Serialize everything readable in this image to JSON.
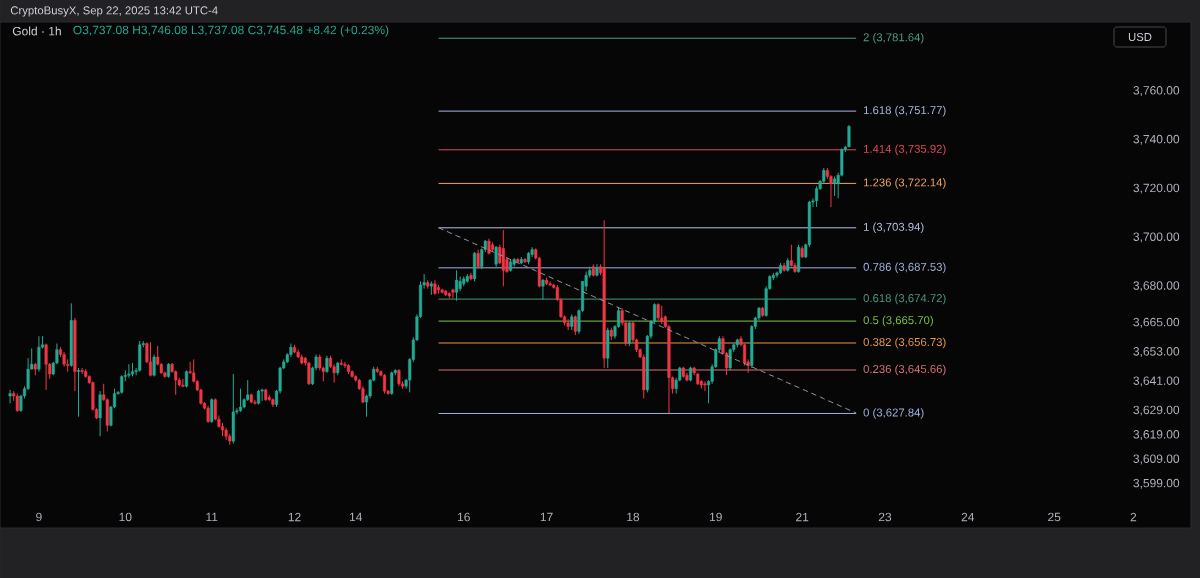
{
  "chart_data": {
    "type": "candlestick",
    "title": "Gold · 1h",
    "subtitle": "O3,737.08 H3,746.08 L3,737.08 C3,745.48 +8.42 (+0.23%)",
    "annotations": [
      "CryptoBusyX, Sep 22, 2025 13:42 UTC-4",
      "USD"
    ],
    "categories": [
      null,
      null,
      null,
      null,
      null,
      null,
      null,
      null,
      "9",
      null,
      null,
      null,
      null,
      null,
      null,
      null,
      null,
      null,
      null,
      null,
      null,
      null,
      null,
      null,
      null,
      null,
      null,
      null,
      null,
      null,
      null,
      null,
      "10",
      null,
      null,
      null,
      null,
      null,
      null,
      null,
      null,
      null,
      null,
      null,
      null,
      null,
      null,
      null,
      null,
      null,
      null,
      null,
      null,
      null,
      null,
      null,
      "11",
      null,
      null,
      null,
      null,
      null,
      null,
      null,
      null,
      null,
      null,
      null,
      null,
      null,
      null,
      null,
      null,
      null,
      null,
      null,
      null,
      null,
      null,
      "12",
      null,
      null,
      null,
      null,
      null,
      null,
      null,
      null,
      null,
      null,
      null,
      null,
      null,
      null,
      null,
      null,
      "14",
      null,
      null,
      null,
      null,
      null,
      null,
      null,
      null,
      null,
      null,
      null,
      null,
      null,
      null,
      null,
      null,
      null,
      null,
      null,
      null,
      null,
      null,
      null,
      null,
      null,
      null,
      null,
      null,
      null,
      "16",
      null,
      null,
      null,
      null,
      null,
      null,
      null,
      null,
      null,
      null,
      null,
      null,
      null,
      null,
      null,
      null,
      null,
      null,
      null,
      null,
      null,
      null,
      "17",
      null,
      null,
      null,
      null,
      null,
      null,
      null,
      null,
      null,
      null,
      null,
      null,
      null,
      null,
      null,
      null,
      null,
      null,
      null,
      null,
      null,
      null,
      null,
      "18",
      null,
      null,
      null,
      null,
      null,
      null,
      null,
      null,
      null,
      null,
      null,
      null,
      null,
      null,
      null,
      null,
      null,
      null,
      null,
      null,
      null,
      null,
      "19",
      null,
      null,
      null,
      null,
      null,
      null,
      null,
      null,
      null,
      null,
      null,
      null,
      null,
      null,
      null,
      null,
      null,
      null,
      null,
      null,
      null,
      null,
      null,
      "21",
      null,
      null,
      null,
      null,
      null,
      null,
      null,
      null,
      null,
      null,
      null,
      null,
      null,
      null,
      null,
      null,
      null,
      null,
      null,
      null,
      null,
      null,
      "23",
      null,
      null,
      null,
      null,
      null,
      null,
      null,
      null,
      null,
      null,
      null,
      null,
      null,
      null,
      null,
      null,
      null,
      null,
      null,
      null,
      null,
      null,
      "24",
      null,
      null,
      null,
      null,
      null,
      null,
      null,
      null,
      null,
      null,
      null,
      null,
      null,
      null,
      null,
      null,
      null,
      null,
      null,
      null,
      null,
      null,
      null,
      "25",
      null,
      null,
      null,
      null,
      null,
      null,
      null,
      null,
      null,
      null,
      null,
      null,
      null,
      null,
      null,
      null,
      null,
      null,
      null,
      null,
      null,
      "2"
    ],
    "ohlc": [
      [
        3635,
        3637.5,
        3632,
        3636
      ],
      [
        3636,
        3637,
        3633,
        3635
      ],
      [
        3635,
        3636,
        3628.5,
        3629
      ],
      [
        3629,
        3635.5,
        3628.5,
        3635
      ],
      [
        3635,
        3639,
        3634,
        3638
      ],
      [
        3638,
        3650.5,
        3637.5,
        3646
      ],
      [
        3646,
        3654.5,
        3646,
        3648
      ],
      [
        3648,
        3648.5,
        3643.5,
        3646
      ],
      [
        3646,
        3659.5,
        3645,
        3655
      ],
      [
        3655,
        3659.5,
        3654.5,
        3656
      ],
      [
        3656,
        3656.5,
        3637.5,
        3648
      ],
      [
        3648,
        3648.5,
        3642,
        3644
      ],
      [
        3644,
        3649,
        3643.5,
        3648.5
      ],
      [
        3648.5,
        3656.5,
        3648,
        3654
      ],
      [
        3654,
        3655,
        3651,
        3652
      ],
      [
        3652,
        3653,
        3647,
        3648
      ],
      [
        3648,
        3650,
        3645,
        3647.5
      ],
      [
        3647.5,
        3673,
        3647,
        3666
      ],
      [
        3666,
        3667,
        3637,
        3645
      ],
      [
        3645,
        3646.5,
        3626.5,
        3645.5
      ],
      [
        3645.5,
        3646.5,
        3644,
        3645
      ],
      [
        3645,
        3646,
        3642.5,
        3643
      ],
      [
        3643,
        3643.5,
        3640,
        3640.5
      ],
      [
        3640.5,
        3641,
        3629,
        3629.5
      ],
      [
        3629.5,
        3630,
        3625.5,
        3626
      ],
      [
        3626,
        3637,
        3618.5,
        3635.5
      ],
      [
        3635.5,
        3640,
        3633,
        3633.5
      ],
      [
        3633.5,
        3634,
        3620.5,
        3623
      ],
      [
        3623,
        3631,
        3622.5,
        3630.5
      ],
      [
        3630.5,
        3638,
        3630,
        3636
      ],
      [
        3636,
        3637,
        3635.5,
        3636.5
      ],
      [
        3636.5,
        3643.5,
        3636,
        3643
      ],
      [
        3643,
        3645.5,
        3641,
        3643.5
      ],
      [
        3643.5,
        3648,
        3642.5,
        3644
      ],
      [
        3644,
        3648.5,
        3643,
        3645
      ],
      [
        3645,
        3646.5,
        3643.5,
        3645.5
      ],
      [
        3645.5,
        3657.5,
        3645,
        3656
      ],
      [
        3656,
        3657.5,
        3655,
        3656.5
      ],
      [
        3656.5,
        3657,
        3648.5,
        3649
      ],
      [
        3649,
        3657,
        3643,
        3643.5
      ],
      [
        3643.5,
        3652,
        3643,
        3651
      ],
      [
        3651,
        3655.5,
        3647.5,
        3648
      ],
      [
        3648,
        3648.5,
        3644,
        3644.5
      ],
      [
        3644.5,
        3645,
        3642.5,
        3643
      ],
      [
        3643,
        3648.5,
        3642.5,
        3648
      ],
      [
        3648,
        3648.5,
        3644.5,
        3645
      ],
      [
        3645,
        3645.5,
        3635.5,
        3641.5
      ],
      [
        3641.5,
        3642.5,
        3639,
        3639.5
      ],
      [
        3639.5,
        3642,
        3638.5,
        3639
      ],
      [
        3639,
        3645.5,
        3638.5,
        3645
      ],
      [
        3645,
        3649,
        3644,
        3644.5
      ],
      [
        3644.5,
        3650,
        3640.5,
        3641
      ],
      [
        3641,
        3641.5,
        3637,
        3637.5
      ],
      [
        3637.5,
        3638,
        3631.5,
        3632
      ],
      [
        3632,
        3632.5,
        3629.5,
        3630
      ],
      [
        3630,
        3631,
        3624,
        3624.5
      ],
      [
        3624.5,
        3634,
        3624,
        3633.5
      ],
      [
        3633.5,
        3634,
        3625,
        3625.5
      ],
      [
        3625.5,
        3627,
        3622,
        3622.5
      ],
      [
        3622.5,
        3624,
        3618.5,
        3621
      ],
      [
        3621,
        3622,
        3617,
        3618.5
      ],
      [
        3618.5,
        3619.5,
        3615,
        3616.5
      ],
      [
        3616.5,
        3644,
        3615.5,
        3628.5
      ],
      [
        3628.5,
        3630,
        3627.5,
        3629
      ],
      [
        3629,
        3638,
        3628.5,
        3630.5
      ],
      [
        3630.5,
        3634,
        3630,
        3633.5
      ],
      [
        3633.5,
        3641.5,
        3633,
        3635.5
      ],
      [
        3635.5,
        3636,
        3632,
        3632.5
      ],
      [
        3632.5,
        3633.5,
        3631.5,
        3632
      ],
      [
        3632,
        3637.5,
        3631.5,
        3637
      ],
      [
        3637,
        3638,
        3633,
        3637.5
      ],
      [
        3637.5,
        3638,
        3633,
        3633.5
      ],
      [
        3634.5,
        3635.5,
        3633,
        3633.5
      ],
      [
        3633.5,
        3634,
        3630.5,
        3631.5
      ],
      [
        3631.5,
        3637.5,
        3630.5,
        3637
      ],
      [
        3637,
        3647,
        3636,
        3646.5
      ],
      [
        3646.5,
        3650,
        3646,
        3649
      ],
      [
        3649,
        3652.5,
        3648.5,
        3652
      ],
      [
        3652,
        3656.5,
        3651,
        3655
      ],
      [
        3655,
        3656,
        3652.5,
        3653
      ],
      [
        3653,
        3654,
        3650.5,
        3651
      ],
      [
        3651,
        3652,
        3648,
        3648.5
      ],
      [
        3650.5,
        3651,
        3647.5,
        3648.5
      ],
      [
        3648.5,
        3649,
        3639.5,
        3640
      ],
      [
        3640,
        3647,
        3639.5,
        3646.5
      ],
      [
        3646.5,
        3652,
        3645.5,
        3651
      ],
      [
        3651,
        3652,
        3645.5,
        3646.5
      ],
      [
        3646.5,
        3647,
        3641,
        3645
      ],
      [
        3645,
        3651.5,
        3644.5,
        3650.5
      ],
      [
        3650.5,
        3651.5,
        3646.5,
        3647
      ],
      [
        3647,
        3648,
        3640.5,
        3644.5
      ],
      [
        3644.5,
        3649,
        3643.5,
        3648.5
      ],
      [
        3648.5,
        3650,
        3647.5,
        3648
      ],
      [
        3648,
        3649,
        3646.5,
        3647.5
      ],
      [
        3647.5,
        3648,
        3644,
        3645
      ],
      [
        3645,
        3645.5,
        3642.5,
        3643
      ],
      [
        3643,
        3643.5,
        3641,
        3641.5
      ],
      [
        3641.5,
        3642,
        3637.5,
        3638
      ],
      [
        3638,
        3639,
        3632,
        3632.5
      ],
      [
        3632.5,
        3635.5,
        3626.5,
        3635
      ],
      [
        3635,
        3642,
        3634,
        3641.5
      ],
      [
        3641.5,
        3647,
        3641,
        3646
      ],
      [
        3646,
        3647,
        3644.5,
        3645
      ],
      [
        3645,
        3645.5,
        3643,
        3643.5
      ],
      [
        3643.5,
        3644,
        3636,
        3637
      ],
      [
        3637,
        3637.5,
        3635.5,
        3636
      ],
      [
        3636,
        3645,
        3635.5,
        3644.5
      ],
      [
        3644.5,
        3646,
        3643.5,
        3645.5
      ],
      [
        3645.5,
        3646,
        3639,
        3640
      ],
      [
        3640,
        3641,
        3638,
        3639
      ],
      [
        3639,
        3642,
        3638,
        3641.5
      ],
      [
        3641.5,
        3650.5,
        3636.5,
        3650
      ],
      [
        3650,
        3659,
        3649,
        3658
      ],
      [
        3658,
        3668.5,
        3657.5,
        3667.5
      ],
      [
        3667.5,
        3682,
        3667,
        3680.5
      ],
      [
        3680.5,
        3685,
        3679,
        3681.5
      ],
      [
        3681.5,
        3682.5,
        3679,
        3680
      ],
      [
        3680,
        3682,
        3676.5,
        3681
      ],
      [
        3681,
        3682.5,
        3676.5,
        3677
      ],
      [
        3679.5,
        3680.5,
        3677,
        3678.5
      ],
      [
        3678.5,
        3679,
        3677,
        3677.5
      ],
      [
        3678,
        3678.5,
        3676,
        3676.5
      ],
      [
        3677,
        3677.5,
        3675,
        3676
      ],
      [
        3678.5,
        3679,
        3675,
        3677.5
      ],
      [
        3677.5,
        3686.5,
        3674,
        3682.5
      ],
      [
        3679,
        3684,
        3678,
        3682
      ],
      [
        3681,
        3684,
        3680,
        3683
      ],
      [
        3682,
        3685,
        3681.5,
        3684
      ],
      [
        3684.5,
        3685.5,
        3682.5,
        3683
      ],
      [
        3683,
        3694,
        3682,
        3693.5
      ],
      [
        3693.5,
        3695,
        3687,
        3688
      ],
      [
        3688,
        3695.5,
        3687,
        3695
      ],
      [
        3695,
        3699,
        3694,
        3698.5
      ],
      [
        3698.5,
        3699.5,
        3693,
        3693.5
      ],
      [
        3697,
        3698,
        3694,
        3695
      ],
      [
        3689,
        3696.5,
        3688,
        3696
      ],
      [
        3696,
        3697,
        3689,
        3689.5
      ],
      [
        3695.5,
        3703,
        3680,
        3686.5
      ],
      [
        3691,
        3692,
        3685.5,
        3686
      ],
      [
        3686.5,
        3691,
        3686,
        3690
      ],
      [
        3689,
        3691.5,
        3688,
        3691
      ],
      [
        3691,
        3691.5,
        3689.5,
        3690
      ],
      [
        3689.5,
        3692,
        3689,
        3691
      ],
      [
        3691,
        3691.5,
        3689.5,
        3690
      ],
      [
        3690,
        3694,
        3689,
        3693.5
      ],
      [
        3693,
        3696,
        3692,
        3695
      ],
      [
        3695,
        3695.5,
        3691,
        3691.5
      ],
      [
        3691.5,
        3692,
        3679.5,
        3680
      ],
      [
        3680,
        3683,
        3674.5,
        3682.5
      ],
      [
        3682.5,
        3683.5,
        3680.5,
        3681
      ],
      [
        3681,
        3682,
        3680,
        3680.5
      ],
      [
        3680.5,
        3681,
        3679,
        3679.5
      ],
      [
        3679.5,
        3680.5,
        3674,
        3674.5
      ],
      [
        3674.5,
        3675,
        3667,
        3667.5
      ],
      [
        3667.5,
        3668,
        3664,
        3665
      ],
      [
        3665,
        3666.5,
        3662,
        3663.5
      ],
      [
        3663.5,
        3668.5,
        3662,
        3667.5
      ],
      [
        3667.5,
        3668,
        3660,
        3661.5
      ],
      [
        3661.5,
        3670.5,
        3660.5,
        3670
      ],
      [
        3670,
        3682,
        3669.5,
        3682
      ],
      [
        3680,
        3686,
        3678,
        3684.5
      ],
      [
        3684.5,
        3688,
        3683.5,
        3686.5
      ],
      [
        3688,
        3689,
        3684,
        3684.5
      ],
      [
        3684.5,
        3689,
        3684,
        3687.5
      ],
      [
        3688,
        3689,
        3684.5,
        3685.5
      ],
      [
        3687.5,
        3707,
        3646.5,
        3650.5
      ],
      [
        3650.5,
        3663,
        3646.5,
        3662
      ],
      [
        3662,
        3663,
        3658,
        3659.5
      ],
      [
        3659.5,
        3664,
        3658.5,
        3663.5
      ],
      [
        3663.5,
        3671.5,
        3663,
        3670
      ],
      [
        3670,
        3671,
        3664,
        3665
      ],
      [
        3665,
        3666,
        3655.5,
        3656.5
      ],
      [
        3656.5,
        3665.5,
        3655.5,
        3665
      ],
      [
        3665,
        3665.5,
        3657,
        3658
      ],
      [
        3658,
        3658.5,
        3653,
        3654
      ],
      [
        3654,
        3654.5,
        3650.5,
        3651
      ],
      [
        3651,
        3652,
        3634,
        3637.5
      ],
      [
        3637.5,
        3660,
        3636.5,
        3659.5
      ],
      [
        3659.5,
        3666,
        3658.5,
        3665.5
      ],
      [
        3665.5,
        3673,
        3665,
        3672.5
      ],
      [
        3672.5,
        3673,
        3666,
        3667
      ],
      [
        3667,
        3672,
        3664.5,
        3665.5
      ],
      [
        3667.5,
        3668,
        3663,
        3663.5
      ],
      [
        3663.5,
        3664,
        3628,
        3642.5
      ],
      [
        3642.5,
        3643,
        3636,
        3638
      ],
      [
        3638,
        3642.5,
        3636,
        3641.5
      ],
      [
        3641.5,
        3647,
        3641,
        3646.5
      ],
      [
        3646.5,
        3647,
        3642.5,
        3643
      ],
      [
        3643.5,
        3644.5,
        3641,
        3641.5
      ],
      [
        3641.5,
        3647,
        3641,
        3646.5
      ],
      [
        3646.5,
        3647,
        3643.5,
        3644.5
      ],
      [
        3644,
        3644.5,
        3639.5,
        3640
      ],
      [
        3641,
        3641.5,
        3638,
        3639.5
      ],
      [
        3640,
        3641,
        3637,
        3639.5
      ],
      [
        3639.5,
        3641.5,
        3632,
        3641
      ],
      [
        3641,
        3648,
        3640,
        3647
      ],
      [
        3647,
        3654.5,
        3646.5,
        3654
      ],
      [
        3654,
        3659.5,
        3653,
        3658.5
      ],
      [
        3658.5,
        3659.5,
        3652,
        3652.5
      ],
      [
        3652.5,
        3653,
        3643.5,
        3646.5
      ],
      [
        3646.5,
        3654.5,
        3645.5,
        3654
      ],
      [
        3654,
        3656.5,
        3653,
        3656
      ],
      [
        3656,
        3658.5,
        3655,
        3658
      ],
      [
        3658.5,
        3659.5,
        3655.5,
        3656
      ],
      [
        3656,
        3656.5,
        3647.5,
        3648.5
      ],
      [
        3649,
        3650,
        3644.5,
        3647.5
      ],
      [
        3647.5,
        3664,
        3646.5,
        3663.5
      ],
      [
        3663.5,
        3667.5,
        3662.5,
        3667
      ],
      [
        3667,
        3671.5,
        3666,
        3671
      ],
      [
        3671,
        3671.5,
        3667.5,
        3668
      ],
      [
        3668,
        3680,
        3667.5,
        3679
      ],
      [
        3679,
        3684.5,
        3678.5,
        3684
      ],
      [
        3683.5,
        3685.5,
        3682.5,
        3684.5
      ],
      [
        3684.5,
        3686,
        3683.5,
        3685.5
      ],
      [
        3685.5,
        3689.5,
        3685,
        3688.5
      ],
      [
        3688.5,
        3689.5,
        3686,
        3686.5
      ],
      [
        3686.5,
        3691.5,
        3686,
        3690.5
      ],
      [
        3690.5,
        3697,
        3688,
        3688.5
      ],
      [
        3688.5,
        3689.5,
        3685.5,
        3686
      ],
      [
        3686,
        3697,
        3685.5,
        3696
      ],
      [
        3695.5,
        3696.5,
        3691.5,
        3692
      ],
      [
        3692,
        3697.5,
        3691.5,
        3697
      ],
      [
        3697,
        3715,
        3696,
        3714.5
      ],
      [
        3714.5,
        3716,
        3712.5,
        3715
      ],
      [
        3715,
        3721,
        3712.5,
        3720
      ],
      [
        3720,
        3723.5,
        3719.5,
        3723
      ],
      [
        3723,
        3728.5,
        3722,
        3727.5
      ],
      [
        3727.5,
        3728.5,
        3724,
        3725
      ],
      [
        3725,
        3725.5,
        3712.5,
        3722
      ],
      [
        3722,
        3725,
        3717,
        3724
      ],
      [
        3722,
        3726.5,
        3716,
        3725.5
      ],
      [
        3725.5,
        3736.5,
        3725,
        3736
      ],
      [
        3736,
        3737.5,
        3735,
        3737
      ],
      [
        3737.08,
        3746.08,
        3737.08,
        3745.48
      ],
      null,
      null,
      null,
      null,
      null,
      null,
      null,
      null,
      null,
      null,
      null,
      null,
      null,
      null,
      null,
      null,
      null,
      null,
      null,
      null,
      null,
      null,
      null,
      null,
      null,
      null,
      null,
      null,
      null,
      null,
      null,
      null,
      null,
      null,
      null,
      null,
      null,
      null,
      null,
      null,
      null,
      null,
      null,
      null,
      null,
      null,
      null,
      null,
      null,
      null,
      null,
      null,
      null,
      null,
      null,
      null,
      null,
      null,
      null,
      null,
      null,
      null,
      null,
      null,
      null,
      null,
      null,
      null,
      null,
      null,
      null,
      null,
      null,
      null,
      null,
      null,
      null,
      null,
      null
    ],
    "colors": [
      "#22ab94",
      "#f23645",
      "#f23645",
      "#22ab94",
      "#22ab94",
      "#22ab94",
      "#22ab94",
      "#f23645",
      "#22ab94",
      "#22ab94",
      "#f23645",
      "#f23645",
      "#22ab94",
      "#22ab94",
      "#f23645",
      "#f23645",
      "#f23645",
      "#22ab94",
      "#f23645",
      "#22ab94",
      "#f23645",
      "#f23645",
      "#f23645",
      "#f23645",
      "#f23645",
      "#22ab94",
      "#f23645",
      "#f23645",
      "#22ab94",
      "#22ab94",
      "#22ab94",
      "#22ab94",
      "#22ab94",
      "#22ab94",
      "#22ab94",
      "#22ab94",
      "#22ab94",
      "#22ab94",
      "#f23645",
      "#f23645",
      "#22ab94",
      "#f23645",
      "#f23645",
      "#f23645",
      "#22ab94",
      "#f23645",
      "#f23645",
      "#f23645",
      "#f23645",
      "#22ab94",
      "#f23645",
      "#f23645",
      "#f23645",
      "#f23645",
      "#f23645",
      "#f23645",
      "#22ab94",
      "#f23645",
      "#f23645",
      "#f23645",
      "#f23645",
      "#f23645",
      "#22ab94",
      "#22ab94",
      "#22ab94",
      "#22ab94",
      "#22ab94",
      "#f23645",
      "#f23645",
      "#22ab94",
      "#22ab94",
      "#f23645",
      "#f23645",
      "#f23645",
      "#22ab94",
      "#22ab94",
      "#22ab94",
      "#22ab94",
      "#22ab94",
      "#f23645",
      "#f23645",
      "#f23645",
      "#f23645",
      "#f23645",
      "#22ab94",
      "#22ab94",
      "#f23645",
      "#f23645",
      "#22ab94",
      "#f23645",
      "#f23645",
      "#22ab94",
      "#f23645",
      "#f23645",
      "#f23645",
      "#f23645",
      "#f23645",
      "#f23645",
      "#f23645",
      "#22ab94",
      "#22ab94",
      "#22ab94",
      "#f23645",
      "#f23645",
      "#f23645",
      "#f23645",
      "#22ab94",
      "#22ab94",
      "#f23645",
      "#f23645",
      "#22ab94",
      "#22ab94",
      "#22ab94",
      "#22ab94",
      "#22ab94",
      "#22ab94",
      "#f23645",
      "#22ab94",
      "#f23645",
      "#f23645",
      "#f23645",
      "#f23645",
      "#f23645",
      "#f23645",
      "#22ab94",
      "#22ab94",
      "#22ab94",
      "#22ab94",
      "#f23645",
      "#22ab94",
      "#f23645",
      "#22ab94",
      "#22ab94",
      "#f23645",
      "#f23645",
      "#22ab94",
      "#f23645",
      "#f23645",
      "#f23645",
      "#22ab94",
      "#22ab94",
      "#f23645",
      "#22ab94",
      "#f23645",
      "#22ab94",
      "#22ab94",
      "#f23645",
      "#f23645",
      "#22ab94",
      "#f23645",
      "#f23645",
      "#f23645",
      "#f23645",
      "#f23645",
      "#f23645",
      "#f23645",
      "#22ab94",
      "#f23645",
      "#22ab94",
      "#22ab94",
      "#22ab94",
      "#22ab94",
      "#f23645",
      "#22ab94",
      "#f23645",
      "#f23645",
      "#22ab94",
      "#f23645",
      "#22ab94",
      "#22ab94",
      "#f23645",
      "#f23645",
      "#22ab94",
      "#f23645",
      "#f23645",
      "#f23645",
      "#f23645",
      "#22ab94",
      "#22ab94",
      "#22ab94",
      "#f23645",
      "#f23645",
      "#f23645",
      "#f23645",
      "#f23645",
      "#22ab94",
      "#22ab94",
      "#f23645",
      "#f23645",
      "#22ab94",
      "#f23645",
      "#f23645",
      "#f23645",
      "#f23645",
      "#22ab94",
      "#22ab94",
      "#22ab94",
      "#22ab94",
      "#f23645",
      "#f23645",
      "#22ab94",
      "#22ab94",
      "#22ab94",
      "#f23645",
      "#f23645",
      "#f23645",
      "#22ab94",
      "#22ab94",
      "#22ab94",
      "#f23645",
      "#22ab94",
      "#22ab94",
      "#22ab94",
      "#22ab94",
      "#22ab94",
      "#f23645",
      "#22ab94",
      "#f23645",
      "#f23645",
      "#22ab94",
      "#f23645",
      "#22ab94",
      "#22ab94",
      "#22ab94",
      "#22ab94",
      "#22ab94",
      "#22ab94",
      "#f23645",
      "#f23645",
      "#22ab94",
      "#22ab94",
      "#22ab94",
      "#22ab94",
      "#22ab94",
      null,
      null,
      null,
      null,
      null,
      null,
      null,
      null,
      null,
      null,
      null,
      null,
      null,
      null,
      null,
      null,
      null,
      null,
      null,
      null,
      null,
      null,
      null,
      null,
      null,
      null,
      null,
      null,
      null,
      null,
      null,
      null,
      null,
      null,
      null,
      null,
      null,
      null,
      null,
      null,
      null,
      null,
      null,
      null,
      null,
      null,
      null,
      null,
      null,
      null,
      null,
      null,
      null,
      null,
      null,
      null,
      null,
      null,
      null,
      null,
      null,
      null,
      null,
      null,
      null,
      null,
      null,
      null,
      null,
      null,
      null,
      null,
      null,
      null,
      null,
      null,
      null,
      null,
      null
    ],
    "series": [
      {
        "type": "line",
        "color": "#9598a1",
        "line_style": "dashed",
        "values": [
          null,
          null,
          null,
          null,
          null,
          null,
          null,
          null,
          null,
          null,
          null,
          null,
          null,
          null,
          null,
          null,
          null,
          null,
          null,
          null,
          null,
          null,
          null,
          null,
          null,
          null,
          null,
          null,
          null,
          null,
          null,
          null,
          null,
          null,
          null,
          null,
          null,
          null,
          null,
          null,
          null,
          null,
          null,
          null,
          null,
          null,
          null,
          null,
          null,
          null,
          null,
          null,
          null,
          null,
          null,
          null,
          null,
          null,
          null,
          null,
          null,
          null,
          null,
          null,
          null,
          null,
          null,
          null,
          null,
          null,
          null,
          null,
          null,
          null,
          null,
          null,
          null,
          null,
          null,
          null,
          null,
          null,
          null,
          null,
          null,
          null,
          null,
          null,
          null,
          null,
          null,
          null,
          null,
          null,
          null,
          null,
          null,
          null,
          null,
          null,
          null,
          null,
          null,
          null,
          null,
          null,
          null,
          null,
          null,
          null,
          null,
          null,
          null,
          null,
          null,
          null,
          null,
          null,
          null,
          3704,
          3703.3,
          3702.7,
          3702,
          3701.4,
          3700.7,
          3700.1,
          3699.4,
          3698.8,
          3698.1,
          3697.4,
          3696.8,
          3696.1,
          3695.5,
          3694.8,
          3694.2,
          3693.5,
          3692.9,
          3692.2,
          3691.6,
          3690.9,
          3690.2,
          3689.6,
          3688.9,
          3688.3,
          3687.6,
          3687,
          3686.3,
          3685.7,
          3685,
          3684.3,
          3683.7,
          3683,
          3682.4,
          3681.7,
          3681.1,
          3680.4,
          3679.8,
          3679.1,
          3678.4,
          3677.8,
          3677.1,
          3676.5,
          3675.8,
          3675.2,
          3674.5,
          3673.9,
          3673.2,
          3672.6,
          3671.9,
          3671.2,
          3670.6,
          3669.9,
          3669.3,
          3668.6,
          3668,
          3667.3,
          3666.7,
          3666,
          3665.3,
          3664.7,
          3664,
          3663.4,
          3662.7,
          3662.1,
          3661.4,
          3660.8,
          3660.1,
          3659.4,
          3658.8,
          3658.1,
          3657.5,
          3656.8,
          3656.2,
          3655.5,
          3654.9,
          3654.2,
          3653.6,
          3652.9,
          3652.2,
          3651.6,
          3650.9,
          3650.3,
          3649.6,
          3649,
          3648.3,
          3647.7,
          3647,
          3646.3,
          3645.7,
          3645,
          3644.4,
          3643.7,
          3643.1,
          3642.4,
          3641.8,
          3641.1,
          3640.4,
          3639.8,
          3639.1,
          3638.5,
          3637.8,
          3637.2,
          3636.5,
          3635.9,
          3635.2,
          3634.6,
          3633.9,
          3633.2,
          3632.6,
          3631.9,
          3631.3,
          3630.6,
          3630,
          3629.3,
          3628.7,
          3628,
          null,
          null,
          null,
          null,
          null,
          null,
          null,
          null,
          null,
          null,
          null,
          null,
          null,
          null,
          null,
          null,
          null,
          null,
          null,
          null,
          null,
          null,
          null,
          null,
          null,
          null,
          null,
          null,
          null,
          null,
          null,
          null,
          null,
          null,
          null,
          null,
          null,
          null,
          null,
          null,
          null,
          null,
          null,
          null,
          null,
          null,
          null,
          null,
          null,
          null,
          null,
          null,
          null,
          null,
          null,
          null,
          null,
          null,
          null,
          null,
          null,
          null,
          null,
          null,
          null,
          null,
          null,
          null,
          null,
          null,
          null,
          null,
          null,
          null,
          null,
          null,
          null
        ]
      }
    ],
    "ref_lines": [
      {
        "axis": "y",
        "value": 3781.64,
        "label": "2 (3,781.64)",
        "color": "#4e9c87"
      },
      {
        "axis": "y",
        "value": 3751.77,
        "label": "1.618 (3,751.77)",
        "color": "#a9b8e0"
      },
      {
        "axis": "y",
        "value": 3735.92,
        "label": "1.414 (3,735.92)",
        "color": "#e2485b"
      },
      {
        "axis": "y",
        "value": 3722.14,
        "label": "1.236 (3,722.14)",
        "color": "#f5a65b"
      },
      {
        "axis": "y",
        "value": 3703.94,
        "label": "1 (3,703.94)",
        "color": "#b6c2e6"
      },
      {
        "axis": "y",
        "value": 3687.53,
        "label": "0.786 (3,687.53)",
        "color": "#9fb3e0"
      },
      {
        "axis": "y",
        "value": 3674.72,
        "label": "0.618 (3,674.72)",
        "color": "#4a9a7a"
      },
      {
        "axis": "y",
        "value": 3665.7,
        "label": "0.5 (3,665.70)",
        "color": "#7cc63a"
      },
      {
        "axis": "y",
        "value": 3656.73,
        "label": "0.382 (3,656.73)",
        "color": "#e8994a"
      },
      {
        "axis": "y",
        "value": 3645.66,
        "label": "0.236 (3,645.66)",
        "color": "#d9737b"
      },
      {
        "axis": "y",
        "value": 3627.84,
        "label": "0 (3,627.84)",
        "color": "#9db4e0"
      }
    ],
    "ylim": [
      3580.9,
      3788.3
    ],
    "yticks": [
      {
        "value": 3760,
        "label": "3,760.00"
      },
      {
        "value": 3740,
        "label": "3,740.00"
      },
      {
        "value": 3720,
        "label": "3,720.00"
      },
      {
        "value": 3700,
        "label": "3,700.00"
      },
      {
        "value": 3680,
        "label": "3,680.00"
      },
      {
        "value": 3665,
        "label": "3,665.00"
      },
      {
        "value": 3653,
        "label": "3,653.00"
      },
      {
        "value": 3641,
        "label": "3,641.00"
      },
      {
        "value": 3629,
        "label": "3,629.00"
      },
      {
        "value": 3619,
        "label": "3,619.00"
      },
      {
        "value": 3609,
        "label": "3,609.00"
      },
      {
        "value": 3599,
        "label": "3,599.00"
      }
    ]
  }
}
